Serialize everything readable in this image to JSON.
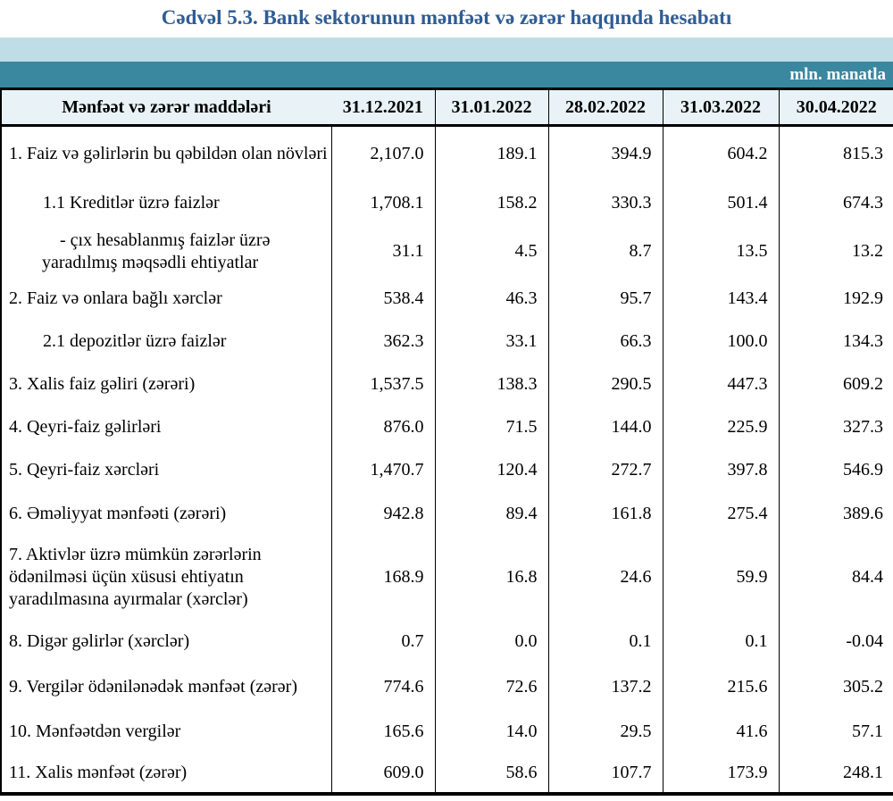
{
  "title": "Cədvəl 5.3. Bank sektorunun mənfəət və zərər haqqında hesabatı",
  "unit_label": "mln. manatla",
  "colors": {
    "title_blue": "#2F5D95",
    "band_light_blue": "#BFDDE7",
    "band_teal": "#3A87A0",
    "header_row_bg": "#E9F3F7",
    "border_black": "#000000"
  },
  "table": {
    "columns": [
      "Mənfəət və zərər maddələri",
      "31.12.2021",
      "31.01.2022",
      "28.02.2022",
      "31.03.2022",
      "30.04.2022"
    ],
    "rows": [
      {
        "indent": 0,
        "label": "1. Faiz və gəlirlərin bu qəbildən olan növləri",
        "values": [
          "2,107.0",
          "189.1",
          "394.9",
          "604.2",
          "815.3"
        ]
      },
      {
        "indent": 1,
        "label": "1.1 Kreditlər üzrə faizlər",
        "values": [
          "1,708.1",
          "158.2",
          "330.3",
          "501.4",
          "674.3"
        ]
      },
      {
        "indent": 2,
        "label": "-  çıx hesablanmış faizlər üzrə\nyaradılmış məqsədli ehtiyatlar",
        "values": [
          "31.1",
          "4.5",
          "8.7",
          "13.5",
          "13.2"
        ]
      },
      {
        "indent": 0,
        "label": "2. Faiz və onlara bağlı xərclər",
        "values": [
          "538.4",
          "46.3",
          "95.7",
          "143.4",
          "192.9"
        ]
      },
      {
        "indent": 1,
        "label": "2.1 depozitlər üzrə faizlər",
        "values": [
          "362.3",
          "33.1",
          "66.3",
          "100.0",
          "134.3"
        ]
      },
      {
        "indent": 0,
        "label": "3. Xalis faiz gəliri (zərəri)",
        "values": [
          "1,537.5",
          "138.3",
          "290.5",
          "447.3",
          "609.2"
        ]
      },
      {
        "indent": 0,
        "label": "4. Qeyri-faiz gəlirləri",
        "values": [
          "876.0",
          "71.5",
          "144.0",
          "225.9",
          "327.3"
        ]
      },
      {
        "indent": 0,
        "label": "5. Qeyri-faiz xərcləri",
        "values": [
          "1,470.7",
          "120.4",
          "272.7",
          "397.8",
          "546.9"
        ]
      },
      {
        "indent": 0,
        "label": "6. Əməliyyat mənfəəti (zərəri)",
        "values": [
          "942.8",
          "89.4",
          "161.8",
          "275.4",
          "389.6"
        ]
      },
      {
        "indent": 0,
        "label": "7. Aktivlər üzrə mümkün zərərlərin\nödənilməsi üçün xüsusi ehtiyatın\nyaradılmasına ayırmalar (xərclər)",
        "values": [
          "168.9",
          "16.8",
          "24.6",
          "59.9",
          "84.4"
        ]
      },
      {
        "indent": 0,
        "label": "8. Digər gəlirlər (xərclər)",
        "values": [
          "0.7",
          "0.0",
          "0.1",
          "0.1",
          "-0.04"
        ]
      },
      {
        "indent": 0,
        "label": "9. Vergilər ödənilənədək mənfəət (zərər)",
        "values": [
          "774.6",
          "72.6",
          "137.2",
          "215.6",
          "305.2"
        ]
      },
      {
        "indent": 0,
        "label": "10. Mənfəətdən vergilər",
        "values": [
          "165.6",
          "14.0",
          "29.5",
          "41.6",
          "57.1"
        ]
      },
      {
        "indent": 0,
        "label": "11. Xalis mənfəət (zərər)",
        "values": [
          "609.0",
          "58.6",
          "107.7",
          "173.9",
          "248.1"
        ]
      }
    ]
  }
}
